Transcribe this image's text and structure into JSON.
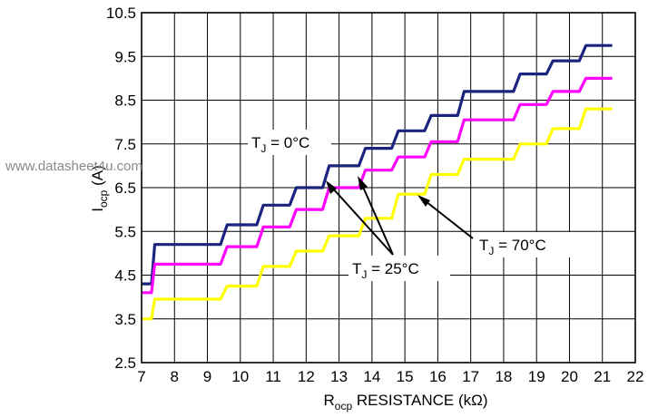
{
  "chart_data": {
    "type": "line",
    "xlabel": {
      "main": "R",
      "sub": "ocp",
      "rest": " RESISTANCE (kΩ)"
    },
    "ylabel": {
      "main": "I",
      "sub": "ocp",
      "rest": " (A)"
    },
    "xlim": [
      7,
      22
    ],
    "ylim": [
      2.5,
      10.5
    ],
    "xticks": [
      "7",
      "8",
      "9",
      "10",
      "11",
      "12",
      "13",
      "14",
      "15",
      "16",
      "17",
      "18",
      "19",
      "20",
      "21",
      "22"
    ],
    "yticks": [
      "2.5",
      "3.5",
      "4.5",
      "5.5",
      "6.5",
      "7.5",
      "8.5",
      "9.5",
      "10.5"
    ],
    "grid": true,
    "series": [
      {
        "name": "T_J = 0°C",
        "color": "#1a237e",
        "points": [
          [
            7.0,
            4.3
          ],
          [
            7.3,
            4.3
          ],
          [
            7.4,
            5.2
          ],
          [
            9.4,
            5.2
          ],
          [
            9.6,
            5.65
          ],
          [
            10.5,
            5.65
          ],
          [
            10.7,
            6.1
          ],
          [
            11.5,
            6.1
          ],
          [
            11.7,
            6.5
          ],
          [
            12.5,
            6.5
          ],
          [
            12.7,
            7.0
          ],
          [
            13.6,
            7.0
          ],
          [
            13.8,
            7.4
          ],
          [
            14.6,
            7.4
          ],
          [
            14.8,
            7.8
          ],
          [
            15.6,
            7.8
          ],
          [
            15.8,
            8.15
          ],
          [
            16.6,
            8.15
          ],
          [
            16.8,
            8.7
          ],
          [
            18.3,
            8.7
          ],
          [
            18.5,
            9.1
          ],
          [
            19.3,
            9.1
          ],
          [
            19.5,
            9.4
          ],
          [
            20.3,
            9.4
          ],
          [
            20.5,
            9.75
          ],
          [
            21.3,
            9.75
          ]
        ]
      },
      {
        "name": "T_J = 25°C",
        "color": "#ff00ff",
        "points": [
          [
            7.0,
            4.1
          ],
          [
            7.3,
            4.1
          ],
          [
            7.4,
            4.75
          ],
          [
            9.4,
            4.75
          ],
          [
            9.6,
            5.15
          ],
          [
            10.5,
            5.15
          ],
          [
            10.7,
            5.6
          ],
          [
            11.5,
            5.6
          ],
          [
            11.7,
            6.0
          ],
          [
            12.5,
            6.0
          ],
          [
            12.7,
            6.5
          ],
          [
            13.6,
            6.5
          ],
          [
            13.8,
            6.9
          ],
          [
            14.6,
            6.9
          ],
          [
            14.8,
            7.2
          ],
          [
            15.6,
            7.2
          ],
          [
            15.8,
            7.55
          ],
          [
            16.6,
            7.55
          ],
          [
            16.8,
            8.05
          ],
          [
            18.3,
            8.05
          ],
          [
            18.5,
            8.4
          ],
          [
            19.3,
            8.4
          ],
          [
            19.5,
            8.7
          ],
          [
            20.3,
            8.7
          ],
          [
            20.5,
            9.0
          ],
          [
            21.3,
            9.0
          ]
        ]
      },
      {
        "name": "T_J = 70°C",
        "color": "#ffff00",
        "points": [
          [
            7.0,
            3.5
          ],
          [
            7.3,
            3.5
          ],
          [
            7.4,
            3.95
          ],
          [
            9.4,
            3.95
          ],
          [
            9.6,
            4.25
          ],
          [
            10.5,
            4.25
          ],
          [
            10.7,
            4.7
          ],
          [
            11.5,
            4.7
          ],
          [
            11.7,
            5.05
          ],
          [
            12.5,
            5.05
          ],
          [
            12.7,
            5.4
          ],
          [
            13.6,
            5.4
          ],
          [
            13.8,
            5.8
          ],
          [
            14.6,
            5.8
          ],
          [
            14.8,
            6.35
          ],
          [
            15.6,
            6.35
          ],
          [
            15.8,
            6.8
          ],
          [
            16.6,
            6.8
          ],
          [
            16.8,
            7.15
          ],
          [
            18.3,
            7.15
          ],
          [
            18.5,
            7.5
          ],
          [
            19.3,
            7.5
          ],
          [
            19.5,
            7.85
          ],
          [
            20.3,
            7.85
          ],
          [
            20.5,
            8.3
          ],
          [
            21.3,
            8.3
          ]
        ]
      }
    ],
    "annotations": [
      {
        "main": "T",
        "sub": "J",
        "rest": " = 0°C"
      },
      {
        "main": "T",
        "sub": "J",
        "rest": " = 25°C"
      },
      {
        "main": "T",
        "sub": "J",
        "rest": " = 70°C"
      }
    ]
  },
  "watermark": "www.datasheet4u.com"
}
